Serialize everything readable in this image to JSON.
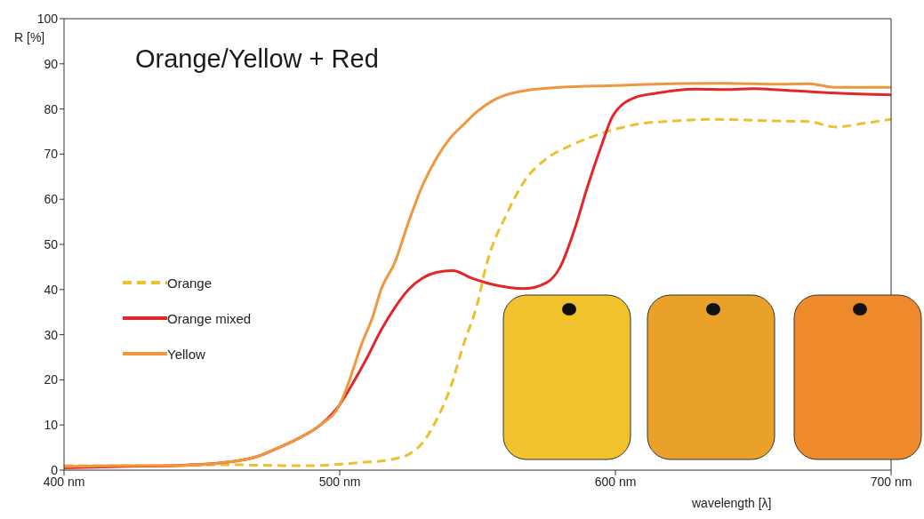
{
  "chart_data": {
    "type": "line",
    "title": "Orange/Yellow + Red",
    "xlabel": "wavelength [λ]",
    "ylabel": "R [%]",
    "xlim": [
      400,
      700
    ],
    "xticks": [
      {
        "value": 400,
        "label": "400 nm"
      },
      {
        "value": 500,
        "label": "500 nm"
      },
      {
        "value": 600,
        "label": "600 nm"
      },
      {
        "value": 700,
        "label": "700 nm"
      }
    ],
    "ylim": [
      0,
      100
    ],
    "yticks": [
      0,
      10,
      20,
      30,
      40,
      50,
      60,
      70,
      80,
      90,
      100
    ],
    "legend": "left",
    "marker": "none",
    "series": [
      {
        "name": "Orange",
        "color": "#ecc12e",
        "line_style": "dashed",
        "x": [
          400,
          420,
          440,
          460,
          480,
          490,
          500,
          510,
          515,
          520,
          525,
          530,
          535,
          540,
          545,
          550,
          553,
          555,
          560,
          567,
          575,
          583,
          590,
          597,
          610,
          620,
          635,
          650,
          660,
          670,
          680,
          690,
          700
        ],
        "values": [
          1,
          1,
          1,
          1.2,
          1,
          1,
          1.3,
          1.8,
          2,
          2.5,
          3.5,
          6,
          11,
          18,
          28,
          37,
          45,
          49,
          56,
          64,
          69,
          71.7,
          73.5,
          75,
          76.8,
          77.3,
          77.7,
          77.5,
          77.3,
          77.2,
          76,
          76.8,
          77.7
        ]
      },
      {
        "name": "Orange mixed",
        "color": "#e3262a",
        "line_style": "solid",
        "x": [
          400,
          420,
          440,
          460,
          470,
          478,
          485,
          493,
          500,
          505,
          510,
          515,
          520,
          525,
          530,
          535,
          541,
          548,
          555,
          567,
          575,
          580,
          585,
          590,
          595,
          599,
          607,
          615,
          629,
          640,
          650,
          660,
          680,
          700
        ],
        "values": [
          0.5,
          0.8,
          1,
          1.8,
          3,
          5,
          7,
          10,
          14.5,
          19.5,
          25,
          31,
          36,
          40,
          42.5,
          43.8,
          44.2,
          42.5,
          41.2,
          40.2,
          41.5,
          45,
          53,
          63,
          72,
          78.4,
          82.5,
          83.5,
          84.4,
          84.3,
          84.5,
          84.2,
          83.5,
          83.1
        ]
      },
      {
        "name": "Yellow",
        "color": "#f0963c",
        "line_style": "solid",
        "x": [
          400,
          420,
          440,
          460,
          470,
          478,
          485,
          493,
          500,
          503,
          508,
          512,
          515,
          520,
          525,
          530,
          535,
          540,
          545,
          550,
          556,
          564,
          580,
          600,
          620,
          640,
          660,
          670,
          680,
          700
        ],
        "values": [
          0.8,
          1,
          1,
          1.8,
          3,
          5,
          7,
          10,
          14.5,
          19,
          28,
          34,
          40,
          46,
          55,
          63,
          69,
          73.5,
          76.6,
          79.5,
          82,
          83.7,
          84.8,
          85.2,
          85.6,
          85.7,
          85.5,
          85.6,
          84.8,
          84.8
        ]
      }
    ]
  }
}
